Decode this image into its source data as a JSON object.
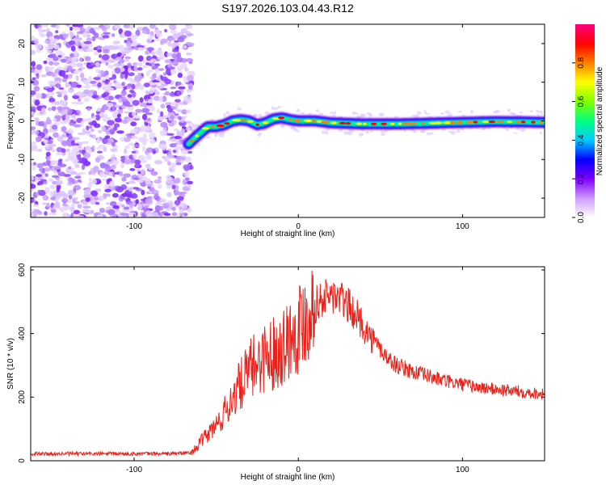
{
  "chart_data": [
    {
      "type": "heatmap",
      "title": "S197.2026.103.04.43.R12",
      "xlabel": "Height of straight line (km)",
      "ylabel": "Frequency (Hz)",
      "xlim": [
        -163,
        150
      ],
      "ylim": [
        -25,
        25
      ],
      "x_ticks": [
        -100,
        0,
        100
      ],
      "y_ticks": [
        -20,
        -10,
        0,
        10,
        20
      ],
      "noise_region_x": [
        -163,
        -65
      ],
      "track": {
        "x": [
          -67,
          -62,
          -58,
          -55,
          -50,
          -45,
          -40,
          -35,
          -30,
          -25,
          -20,
          -15,
          -10,
          -5,
          0,
          10,
          20,
          40,
          60,
          80,
          100,
          120,
          140,
          150
        ],
        "freq": [
          -6,
          -4,
          -2.5,
          -1.5,
          -1.5,
          -1,
          0,
          0.3,
          0,
          -1,
          -0.5,
          0.5,
          0.8,
          0.3,
          0,
          0,
          -0.5,
          -0.8,
          -0.8,
          -0.6,
          -0.4,
          -0.2,
          -0.3,
          -0.4
        ]
      },
      "colorbar": {
        "label": "Normalized spectral amplitude",
        "range": [
          0,
          1
        ],
        "ticks": [
          "0.0",
          "0.2",
          "0.4",
          "0.6",
          "0.8"
        ],
        "colors": [
          "#ffffff",
          "#cc99ff",
          "#8000ff",
          "#0000ff",
          "#00ccff",
          "#00ff80",
          "#80ff00",
          "#ffff00",
          "#ff8000",
          "#ff0000",
          "#ff0080"
        ]
      }
    },
    {
      "type": "line",
      "xlabel": "Height of straight line (km)",
      "ylabel": "SNR (10 * v/v)",
      "xlim": [
        -163,
        150
      ],
      "ylim": [
        0,
        610
      ],
      "x_ticks": [
        -100,
        0,
        100
      ],
      "y_ticks": [
        0,
        200,
        400,
        600
      ],
      "series": [
        {
          "name": "SNR",
          "color": "#e8221b",
          "x": [
            -163,
            -140,
            -120,
            -100,
            -80,
            -65,
            -60,
            -55,
            -50,
            -45,
            -40,
            -35,
            -30,
            -25,
            -20,
            -15,
            -10,
            -5,
            0,
            5,
            10,
            15,
            20,
            25,
            30,
            35,
            40,
            45,
            50,
            55,
            60,
            70,
            80,
            90,
            100,
            110,
            120,
            130,
            140,
            150
          ],
          "values": [
            22,
            22,
            22,
            22,
            22,
            25,
            55,
            85,
            110,
            150,
            200,
            240,
            280,
            310,
            330,
            340,
            360,
            390,
            420,
            460,
            490,
            510,
            520,
            510,
            490,
            460,
            420,
            380,
            350,
            320,
            300,
            280,
            265,
            250,
            240,
            230,
            225,
            220,
            215,
            210
          ]
        }
      ]
    }
  ]
}
